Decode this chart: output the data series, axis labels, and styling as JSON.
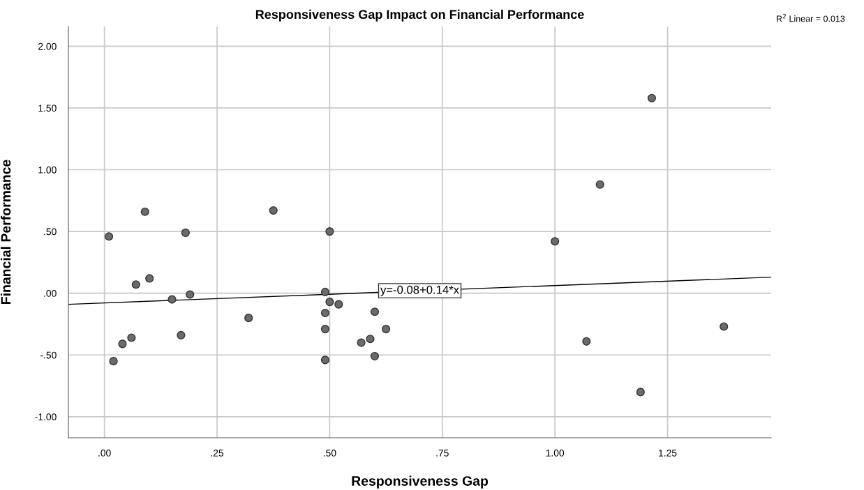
{
  "chart_data": {
    "type": "scatter",
    "title": "Responsiveness Gap Impact on Financial Performance",
    "xlabel": "Responsiveness Gap",
    "ylabel": "Financial Performance",
    "xlim": [
      -0.08,
      1.48
    ],
    "ylim": [
      -1.17,
      2.16
    ],
    "xticks": [
      {
        "value": 0,
        "label": ".00"
      },
      {
        "value": 0.25,
        "label": ".25"
      },
      {
        "value": 0.5,
        "label": ".50"
      },
      {
        "value": 0.75,
        "label": ".75"
      },
      {
        "value": 1,
        "label": "1.00"
      },
      {
        "value": 1.25,
        "label": "1.25"
      }
    ],
    "yticks": [
      {
        "value": -1,
        "label": "-1.00"
      },
      {
        "value": -0.5,
        "label": "-.50"
      },
      {
        "value": 0,
        "label": ".00"
      },
      {
        "value": 0.5,
        "label": ".50"
      },
      {
        "value": 1,
        "label": "1.00"
      },
      {
        "value": 1.5,
        "label": "1.50"
      },
      {
        "value": 2,
        "label": "2.00"
      }
    ],
    "grid": true,
    "marker": "circle",
    "series": [
      {
        "color": "#6b6b6b",
        "x": [
          0.01,
          0.02,
          0.04,
          0.06,
          0.07,
          0.09,
          0.1,
          0.15,
          0.17,
          0.18,
          0.19,
          0.32,
          0.375,
          0.49,
          0.49,
          0.49,
          0.49,
          0.5,
          0.5,
          0.52,
          0.57,
          0.59,
          0.6,
          0.6,
          0.625,
          1.0,
          1.07,
          1.1,
          1.19,
          1.215,
          1.375
        ],
        "values": [
          0.46,
          -0.55,
          -0.41,
          -0.36,
          0.07,
          0.66,
          0.12,
          -0.05,
          -0.34,
          0.49,
          -0.01,
          -0.2,
          0.67,
          0.01,
          -0.16,
          -0.29,
          -0.54,
          0.5,
          -0.07,
          -0.09,
          -0.4,
          -0.37,
          -0.15,
          -0.51,
          -0.29,
          0.42,
          -0.39,
          0.88,
          -0.8,
          1.58,
          -0.27
        ]
      },
      {
        "type": "line",
        "color": "#000000",
        "x": [
          -0.08,
          1.48
        ],
        "values": [
          -0.09,
          0.13
        ],
        "marker": "none",
        "line_style": "solid"
      }
    ],
    "annotations": [
      {
        "text": "y=-0.08+0.14*x",
        "x": 0.7,
        "y": 0.02
      },
      "R$^{2}$ Linear = 0.013"
    ]
  }
}
